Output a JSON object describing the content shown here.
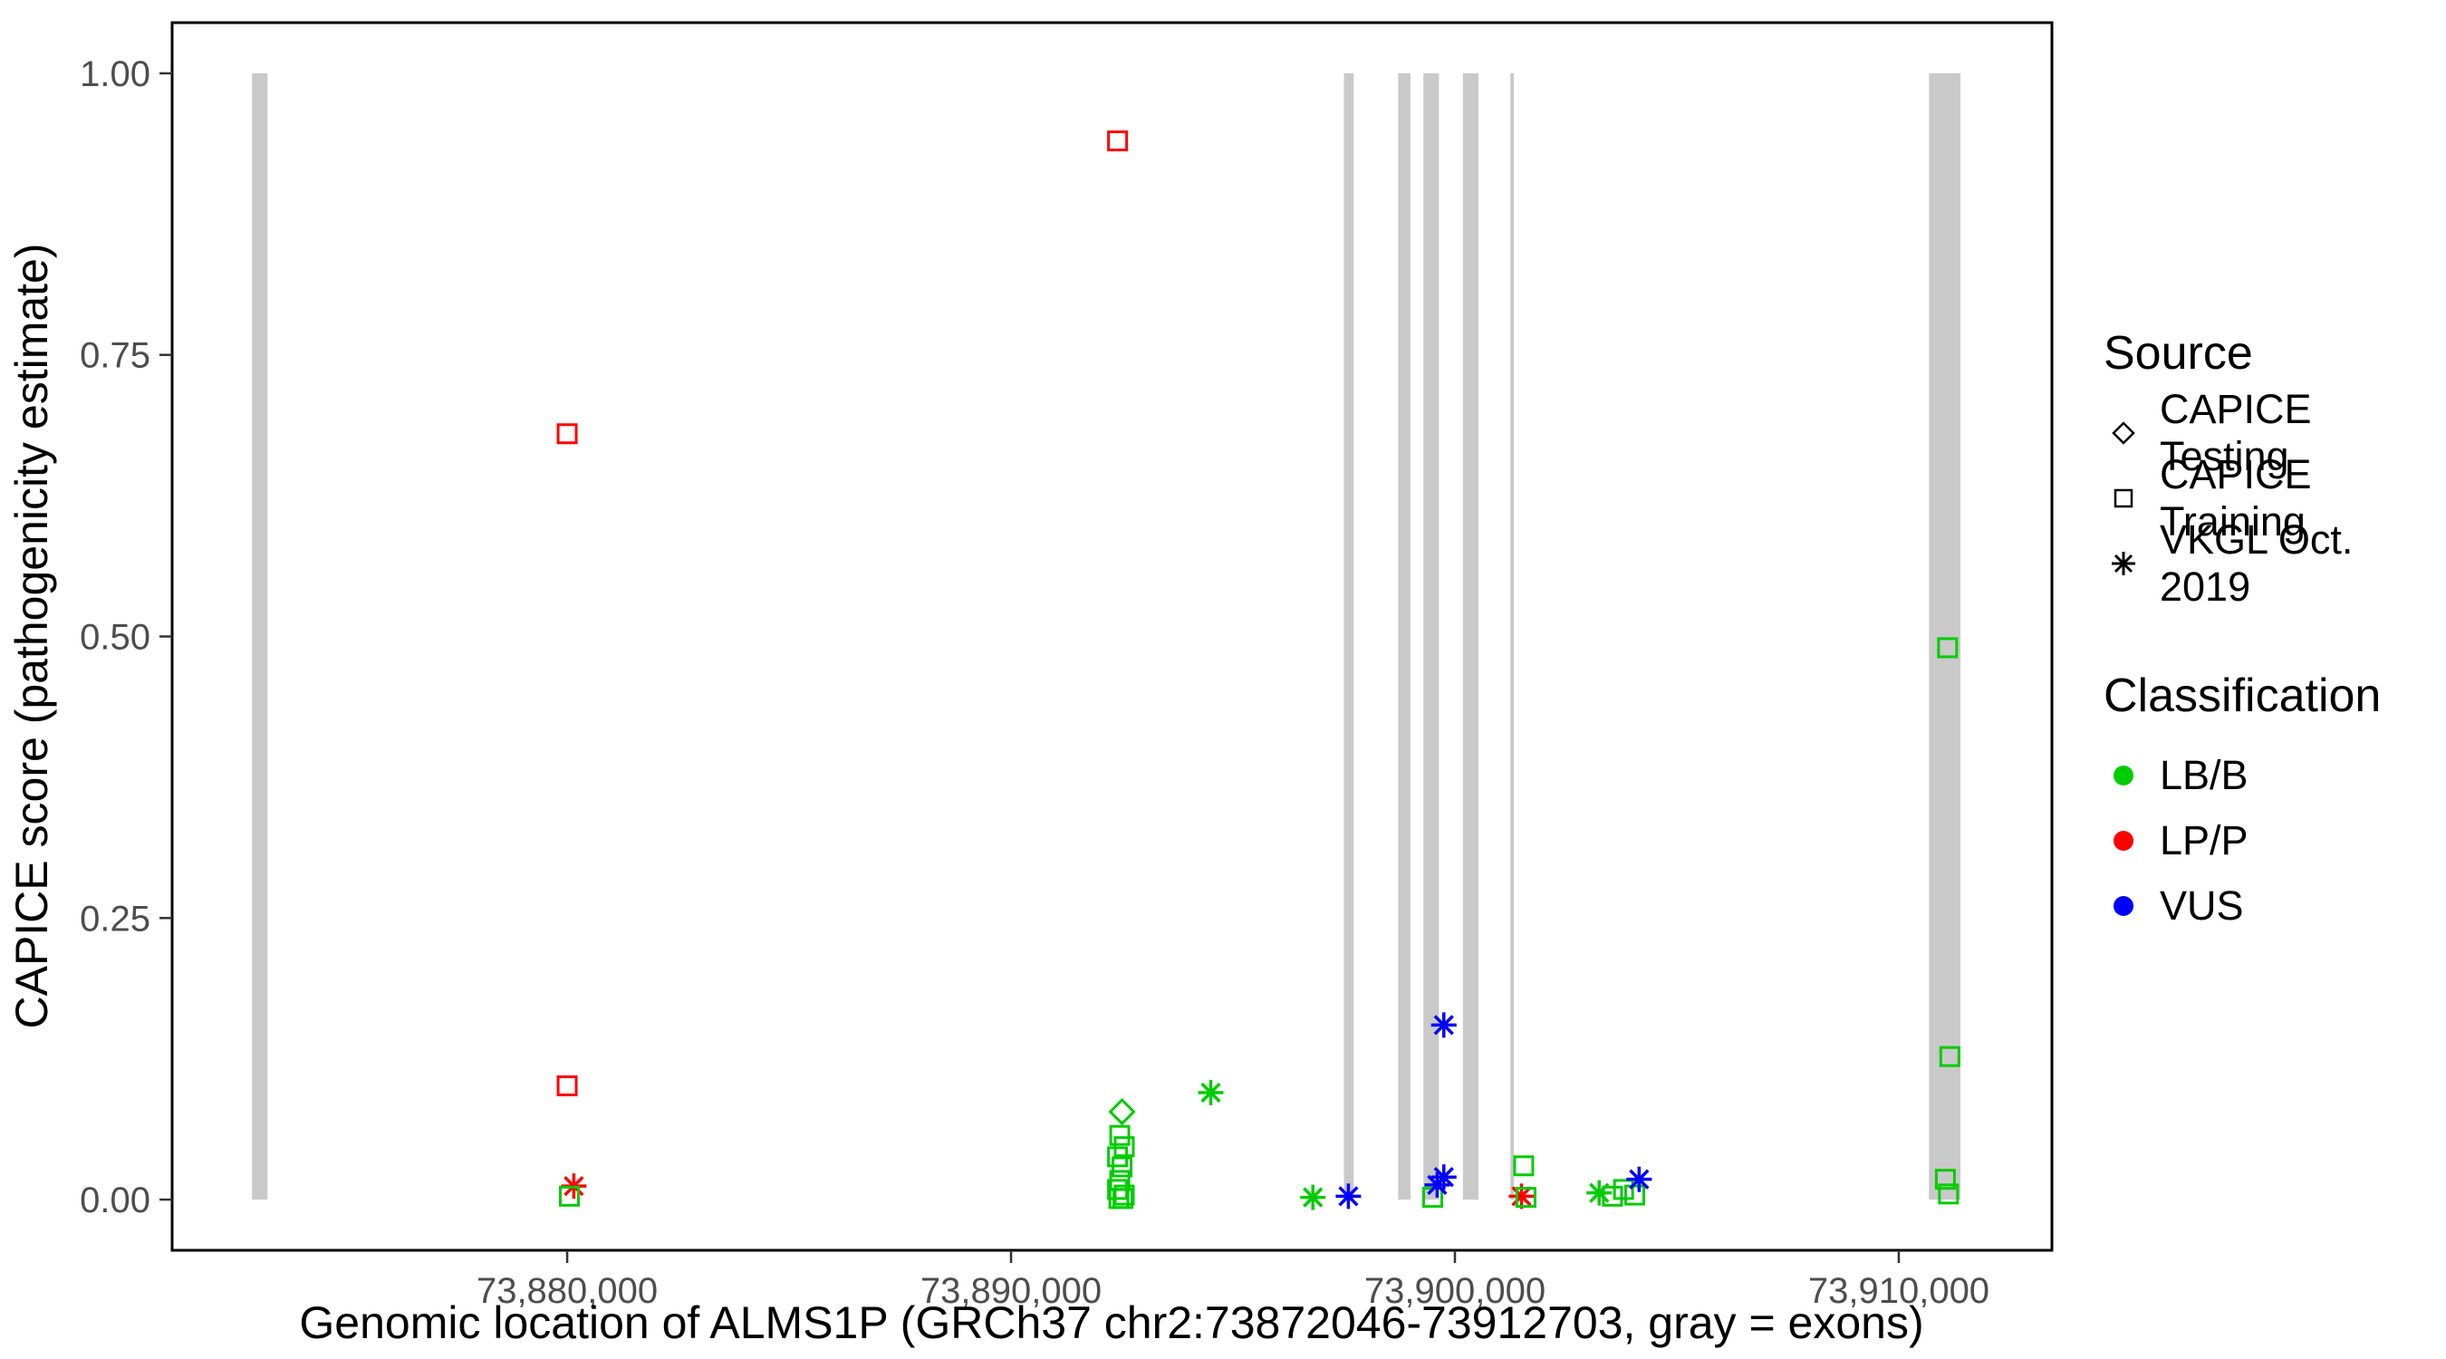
{
  "chart_data": {
    "type": "scatter",
    "title": "",
    "xlabel": "Genomic location of ALMS1P (GRCh37 chr2:73872046-73912703, gray = exons)",
    "ylabel": "CAPICE score (pathogenicity estimate)",
    "x_range": [
      73871100,
      73913450
    ],
    "y_range": [
      -0.045,
      1.045
    ],
    "grid": false,
    "legend_position": "right",
    "x_ticks": [
      {
        "value": 73880000,
        "label": "73,880,000"
      },
      {
        "value": 73890000,
        "label": "73,890,000"
      },
      {
        "value": 73900000,
        "label": "73,900,000"
      },
      {
        "value": 73910000,
        "label": "73,910,000"
      }
    ],
    "y_ticks": [
      {
        "value": 0.0,
        "label": "0.00"
      },
      {
        "value": 0.25,
        "label": "0.25"
      },
      {
        "value": 0.5,
        "label": "0.50"
      },
      {
        "value": 0.75,
        "label": "0.75"
      },
      {
        "value": 1.0,
        "label": "1.00"
      }
    ],
    "exon_color": "#C9C9C9",
    "exons": [
      {
        "start": 73872900,
        "end": 73873250
      },
      {
        "start": 73897500,
        "end": 73897720
      },
      {
        "start": 73898720,
        "end": 73899000
      },
      {
        "start": 73899290,
        "end": 73899640
      },
      {
        "start": 73900180,
        "end": 73900530
      },
      {
        "start": 73901250,
        "end": 73901330
      },
      {
        "start": 73910680,
        "end": 73911390
      }
    ],
    "colors": {
      "LB/B": "#00CC00",
      "LP/P": "#FF0000",
      "VUS": "#0000FF"
    },
    "points": [
      {
        "x": 73880000,
        "y": 0.68,
        "source": "CAPICE Training",
        "cls": "LP/P"
      },
      {
        "x": 73880000,
        "y": 0.101,
        "source": "CAPICE Training",
        "cls": "LP/P"
      },
      {
        "x": 73880150,
        "y": 0.012,
        "source": "VKGL Oct. 2019",
        "cls": "LP/P"
      },
      {
        "x": 73880050,
        "y": 0.003,
        "source": "CAPICE Training",
        "cls": "LB/B"
      },
      {
        "x": 73892400,
        "y": 0.94,
        "source": "CAPICE Training",
        "cls": "LP/P"
      },
      {
        "x": 73892500,
        "y": 0.078,
        "source": "CAPICE Testing",
        "cls": "LB/B"
      },
      {
        "x": 73892450,
        "y": 0.057,
        "source": "CAPICE Training",
        "cls": "LB/B"
      },
      {
        "x": 73892550,
        "y": 0.047,
        "source": "CAPICE Training",
        "cls": "LB/B"
      },
      {
        "x": 73892400,
        "y": 0.038,
        "source": "CAPICE Training",
        "cls": "LB/B"
      },
      {
        "x": 73892500,
        "y": 0.029,
        "source": "CAPICE Training",
        "cls": "LB/B"
      },
      {
        "x": 73892450,
        "y": 0.017,
        "source": "CAPICE Training",
        "cls": "LB/B"
      },
      {
        "x": 73892400,
        "y": 0.009,
        "source": "CAPICE Training",
        "cls": "LB/B"
      },
      {
        "x": 73892550,
        "y": 0.004,
        "source": "CAPICE Training",
        "cls": "LB/B"
      },
      {
        "x": 73892430,
        "y": 0.001,
        "source": "CAPICE Training",
        "cls": "LB/B"
      },
      {
        "x": 73892520,
        "y": 0.001,
        "source": "CAPICE Training",
        "cls": "LB/B"
      },
      {
        "x": 73894500,
        "y": 0.095,
        "source": "VKGL Oct. 2019",
        "cls": "LB/B"
      },
      {
        "x": 73896800,
        "y": 0.002,
        "source": "VKGL Oct. 2019",
        "cls": "LB/B"
      },
      {
        "x": 73897600,
        "y": 0.003,
        "source": "VKGL Oct. 2019",
        "cls": "VUS"
      },
      {
        "x": 73899500,
        "y": 0.002,
        "source": "CAPICE Training",
        "cls": "LB/B"
      },
      {
        "x": 73899600,
        "y": 0.013,
        "source": "VKGL Oct. 2019",
        "cls": "VUS"
      },
      {
        "x": 73899750,
        "y": 0.155,
        "source": "VKGL Oct. 2019",
        "cls": "VUS"
      },
      {
        "x": 73899750,
        "y": 0.02,
        "source": "VKGL Oct. 2019",
        "cls": "VUS"
      },
      {
        "x": 73901550,
        "y": 0.03,
        "source": "CAPICE Training",
        "cls": "LB/B"
      },
      {
        "x": 73901500,
        "y": 0.003,
        "source": "VKGL Oct. 2019",
        "cls": "LP/P"
      },
      {
        "x": 73901600,
        "y": 0.002,
        "source": "CAPICE Training",
        "cls": "LB/B"
      },
      {
        "x": 73903250,
        "y": 0.006,
        "source": "VKGL Oct. 2019",
        "cls": "LB/B"
      },
      {
        "x": 73903550,
        "y": 0.003,
        "source": "CAPICE Training",
        "cls": "LB/B"
      },
      {
        "x": 73903800,
        "y": 0.009,
        "source": "CAPICE Training",
        "cls": "LB/B"
      },
      {
        "x": 73904050,
        "y": 0.004,
        "source": "CAPICE Training",
        "cls": "LB/B"
      },
      {
        "x": 73904150,
        "y": 0.018,
        "source": "VKGL Oct. 2019",
        "cls": "VUS"
      },
      {
        "x": 73911100,
        "y": 0.49,
        "source": "CAPICE Training",
        "cls": "LB/B"
      },
      {
        "x": 73911150,
        "y": 0.127,
        "source": "CAPICE Training",
        "cls": "LB/B"
      },
      {
        "x": 73911050,
        "y": 0.018,
        "source": "CAPICE Training",
        "cls": "LB/B"
      },
      {
        "x": 73911120,
        "y": 0.005,
        "source": "CAPICE Training",
        "cls": "LB/B"
      }
    ]
  },
  "legend": {
    "source": {
      "title": "Source",
      "items": [
        {
          "label": "CAPICE Testing",
          "shape": "diamond"
        },
        {
          "label": "CAPICE Training",
          "shape": "square"
        },
        {
          "label": "VKGL Oct. 2019",
          "shape": "asterisk"
        }
      ]
    },
    "classification": {
      "title": "Classification",
      "items": [
        {
          "label": "LB/B",
          "color": "#00CC00"
        },
        {
          "label": "LP/P",
          "color": "#FF0000"
        },
        {
          "label": "VUS",
          "color": "#0000FF"
        }
      ]
    }
  }
}
